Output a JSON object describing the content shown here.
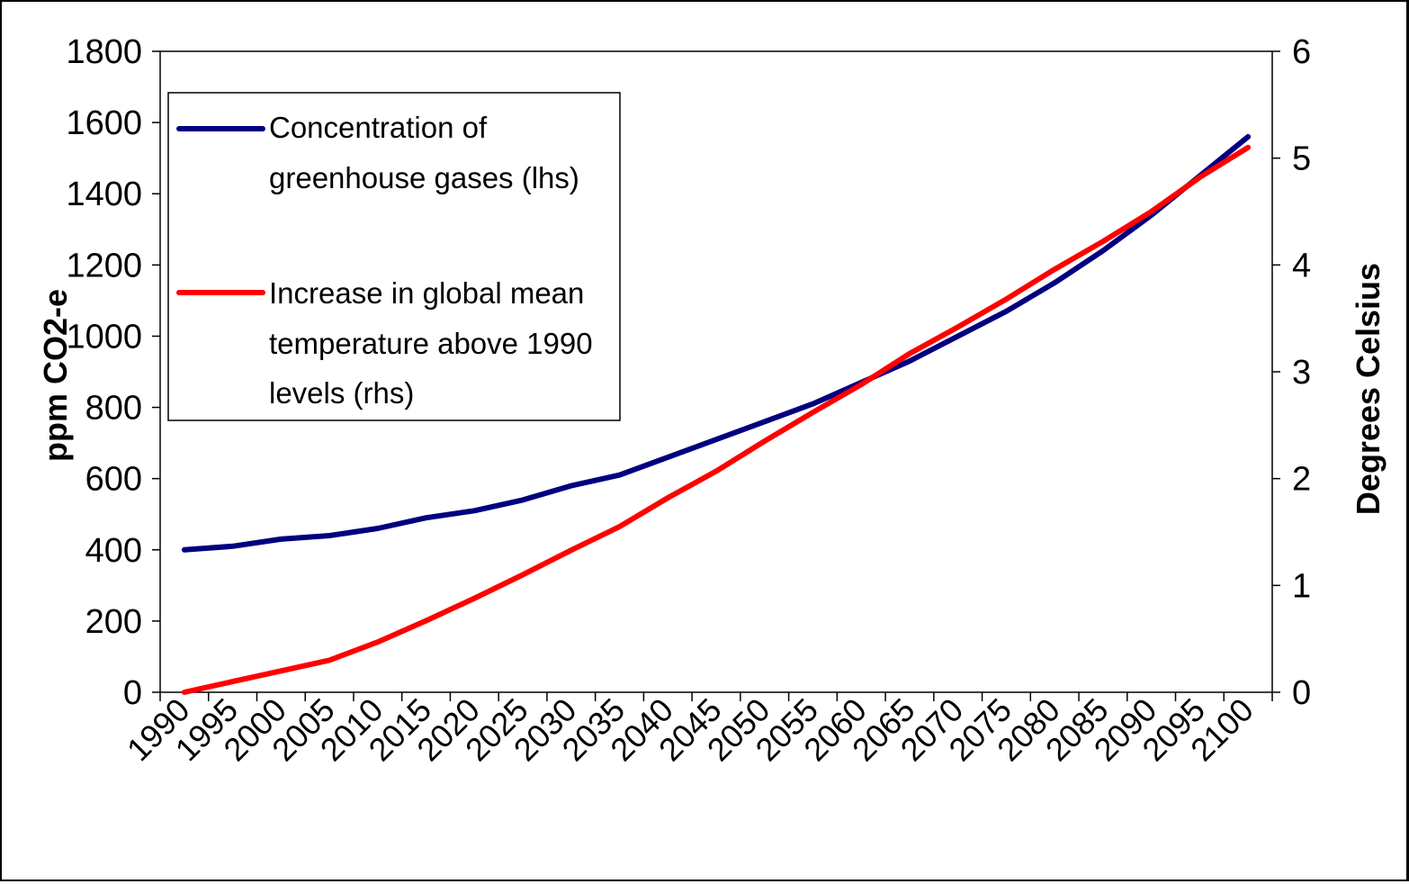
{
  "chart_data": {
    "type": "line",
    "title": "",
    "x": [
      "1990",
      "1995",
      "2000",
      "2005",
      "2010",
      "2015",
      "2020",
      "2025",
      "2030",
      "2035",
      "2040",
      "2045",
      "2050",
      "2055",
      "2060",
      "2065",
      "2070",
      "2075",
      "2080",
      "2085",
      "2090",
      "2095",
      "2100"
    ],
    "series": [
      {
        "name": "Concentration of greenhouse gases (lhs)",
        "axis": "left",
        "color": "#000080",
        "values": [
          400,
          410,
          430,
          440,
          460,
          490,
          510,
          540,
          580,
          610,
          660,
          710,
          760,
          810,
          870,
          930,
          1000,
          1070,
          1150,
          1240,
          1340,
          1450,
          1560
        ]
      },
      {
        "name": "Increase in global mean temperature above 1990 levels (rhs)",
        "axis": "right",
        "color": "#ff0000",
        "values": [
          0,
          0.1,
          0.2,
          0.3,
          0.47,
          0.67,
          0.88,
          1.1,
          1.33,
          1.55,
          1.82,
          2.07,
          2.35,
          2.62,
          2.88,
          3.17,
          3.42,
          3.68,
          3.96,
          4.22,
          4.5,
          4.82,
          5.1
        ]
      }
    ],
    "ylabel": "ppm CO2-e",
    "ylim": [
      0,
      1800
    ],
    "yticks": [
      0,
      200,
      400,
      600,
      800,
      1000,
      1200,
      1400,
      1600,
      1800
    ],
    "ylabel_right": "Degrees Celsius",
    "ylim_right": [
      0,
      6
    ],
    "yticks_right": [
      0,
      1,
      2,
      3,
      4,
      5,
      6
    ],
    "legend_lines": [
      [
        "Concentration of",
        "greenhouse gases (lhs)"
      ],
      [
        "Increase in global mean",
        "temperature above 1990",
        "levels (rhs)"
      ]
    ],
    "legend_position": "top-left",
    "grid": false
  }
}
